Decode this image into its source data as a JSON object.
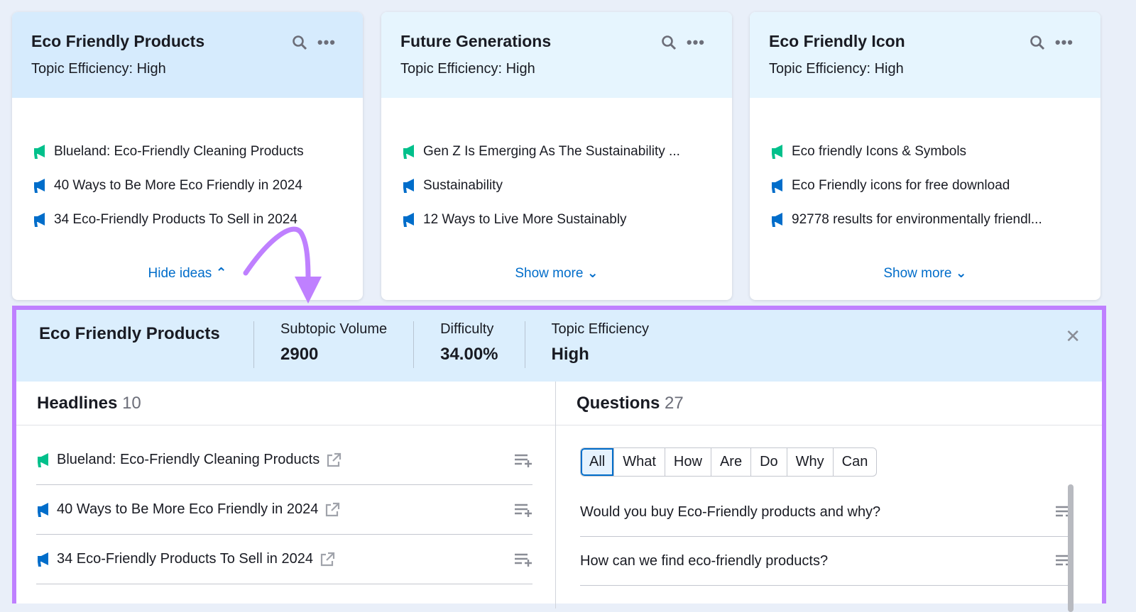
{
  "cards": [
    {
      "title": "Eco Friendly Products",
      "efficiency": "Topic Efficiency: High",
      "ideas": [
        {
          "text": "Blueland: Eco-Friendly Cleaning Products",
          "color": "#00c08b"
        },
        {
          "text": "40 Ways to Be More Eco Friendly in 2024",
          "color": "#006dca"
        },
        {
          "text": "34 Eco-Friendly Products To Sell in 2024",
          "color": "#006dca"
        }
      ],
      "toggle": "Hide ideas",
      "toggle_icon": "chevron-up"
    },
    {
      "title": "Future Generations",
      "efficiency": "Topic Efficiency: High",
      "ideas": [
        {
          "text": "Gen Z Is Emerging As The Sustainability ...",
          "color": "#00c08b"
        },
        {
          "text": "Sustainability",
          "color": "#006dca"
        },
        {
          "text": "12 Ways to Live More Sustainably",
          "color": "#006dca"
        }
      ],
      "toggle": "Show more",
      "toggle_icon": "chevron-down"
    },
    {
      "title": "Eco Friendly Icon",
      "efficiency": "Topic Efficiency: High",
      "ideas": [
        {
          "text": "Eco friendly Icons & Symbols",
          "color": "#00c08b"
        },
        {
          "text": "Eco Friendly icons for free download",
          "color": "#006dca"
        },
        {
          "text": "92778 results for environmentally friendl...",
          "color": "#006dca"
        }
      ],
      "toggle": "Show more",
      "toggle_icon": "chevron-down"
    }
  ],
  "panel": {
    "title": "Eco Friendly Products",
    "metrics": [
      {
        "label": "Subtopic Volume",
        "value": "2900"
      },
      {
        "label": "Difficulty",
        "value": "34.00%"
      },
      {
        "label": "Topic Efficiency",
        "value": "High"
      }
    ],
    "headlines": {
      "label": "Headlines",
      "count": "10",
      "items": [
        {
          "text": "Blueland: Eco-Friendly Cleaning Products",
          "color": "#00c08b"
        },
        {
          "text": "40 Ways to Be More Eco Friendly in 2024",
          "color": "#006dca"
        },
        {
          "text": "34 Eco-Friendly Products To Sell in 2024",
          "color": "#006dca"
        }
      ]
    },
    "questions": {
      "label": "Questions",
      "count": "27",
      "filters": [
        "All",
        "What",
        "How",
        "Are",
        "Do",
        "Why",
        "Can"
      ],
      "selected": "All",
      "items": [
        "Would you buy Eco-Friendly products and why?",
        "How can we find eco-friendly products?"
      ]
    }
  },
  "colors": {
    "accent": "#006dca",
    "highlight": "#bf80ff",
    "green": "#00c08b"
  }
}
